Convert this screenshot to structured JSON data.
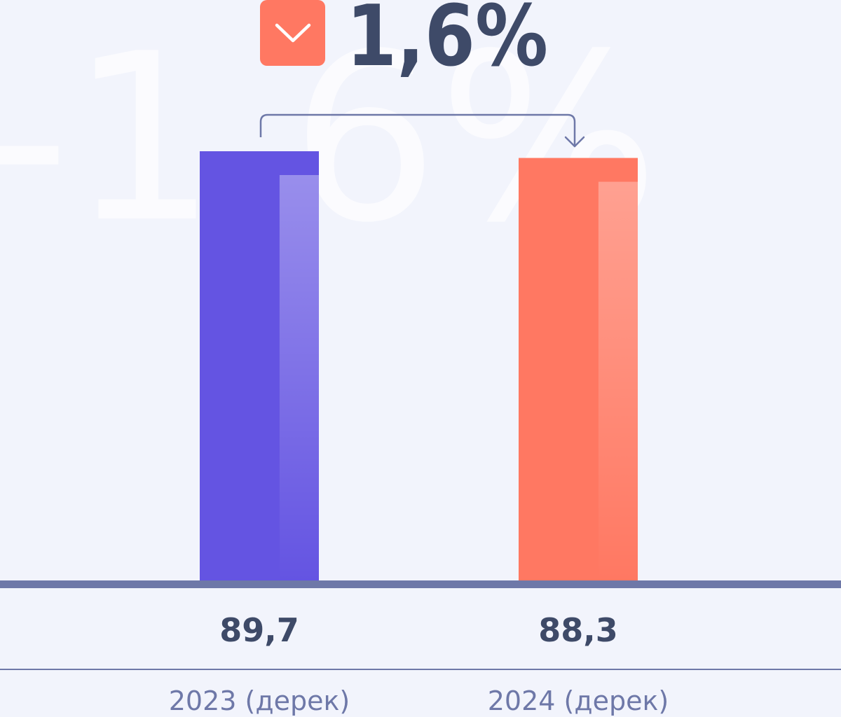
{
  "headline": {
    "change_text": "1,6%",
    "watermark_text": "-1,6%",
    "direction_icon": "chevron-down-icon"
  },
  "colors": {
    "background": "#f2f4fc",
    "bar_2023": "#6454e2",
    "bar_2024": "#ff7862",
    "badge": "#ff7862",
    "text_dark": "#3e4a68",
    "text_muted": "#6e78a8",
    "axis": "#6e78a8"
  },
  "chart_data": {
    "type": "bar",
    "categories": [
      "2023 (дерек)",
      "2024 (дерек)"
    ],
    "values": [
      89.7,
      88.3
    ],
    "value_labels": [
      "89,7",
      "88,3"
    ],
    "title": "",
    "xlabel": "",
    "ylabel": "",
    "ylim": [
      0,
      89.7
    ],
    "grid": false,
    "legend": "none",
    "annotation": "-1,6%"
  }
}
